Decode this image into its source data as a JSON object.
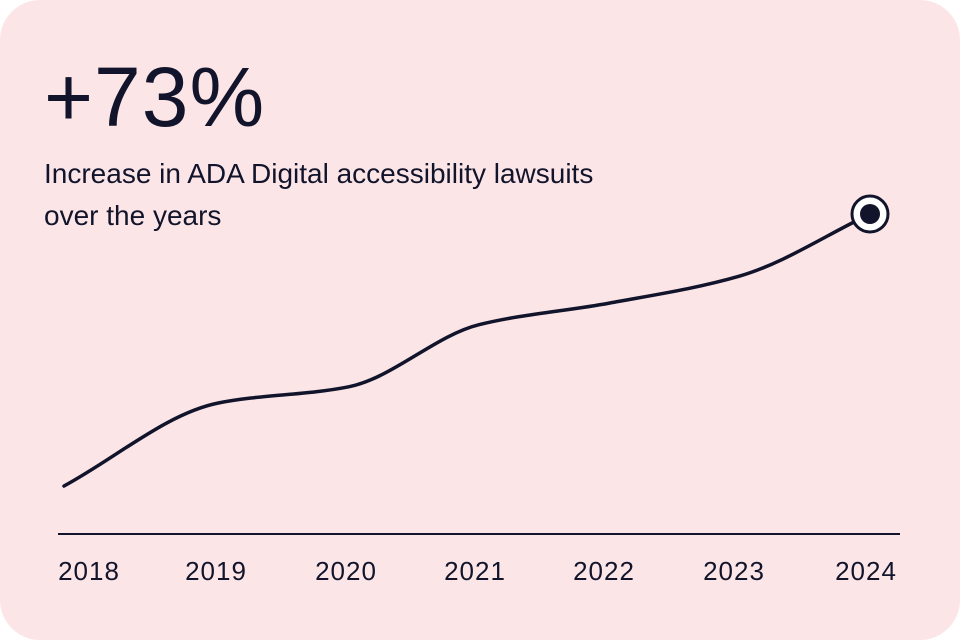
{
  "card": {
    "background_color": "#fce5e7",
    "text_color": "#11142a"
  },
  "headline": "+73%",
  "subtitle": "Increase in ADA Digital accessibility lawsuits over the years",
  "chart_data": {
    "type": "line",
    "title": "",
    "xlabel": "",
    "ylabel": "",
    "categories": [
      "2018",
      "2019",
      "2020",
      "2021",
      "2022",
      "2023",
      "2024"
    ],
    "series": [
      {
        "name": "ADA Digital accessibility lawsuits (relative)",
        "values": [
          0,
          30,
          36,
          59,
          67,
          77,
          100
        ]
      }
    ],
    "ylim": [
      0,
      100
    ],
    "grid": false,
    "axis_ticks_y": false,
    "highlight_last_point": true,
    "line_color": "#11142a",
    "marker_ring_fill": "#ffffff"
  }
}
